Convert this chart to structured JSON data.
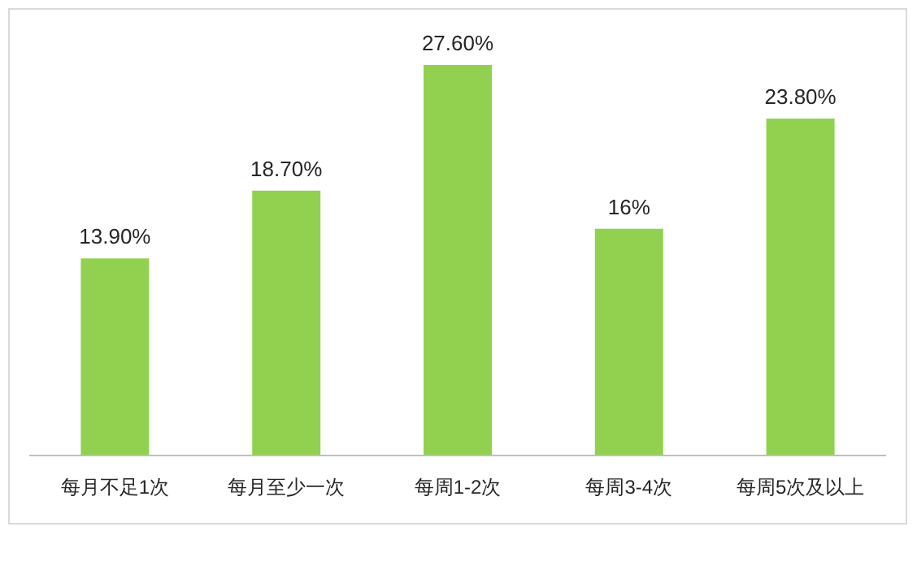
{
  "chart_data": {
    "type": "bar",
    "categories": [
      "每月不足1次",
      "每月至少一次",
      "每周1-2次",
      "每周3-4次",
      "每周5次及以上"
    ],
    "values": [
      13.9,
      18.7,
      27.6,
      16,
      23.8
    ],
    "color": "#92d050",
    "value_labels": [
      "13.90%",
      "18.70%",
      "27.60%",
      "16%",
      "23.80%"
    ]
  }
}
